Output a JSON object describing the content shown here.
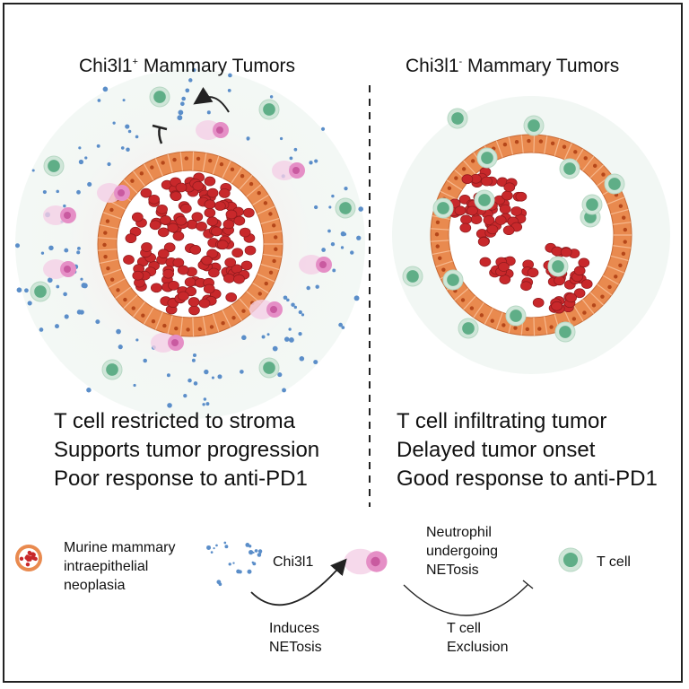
{
  "left_panel": {
    "title_main": "Chi3l1",
    "title_sup": "+",
    "title_rest": " Mammary Tumors",
    "claims": [
      "T cell restricted to stroma",
      "Supports tumor progression",
      "Poor response to anti-PD1"
    ]
  },
  "right_panel": {
    "title_main": "Chi3l1",
    "title_sup": "-",
    "title_rest": " Mammary Tumors",
    "claims": [
      "T cell infiltrating tumor",
      "Delayed tumor onset",
      "Good response to anti-PD1"
    ]
  },
  "legend": {
    "tumor_label": [
      "Murine mammary",
      "intraepithelial",
      "neoplasia"
    ],
    "chi3l1_label": "Chi3l1",
    "induces_label": [
      "Induces",
      "NETosis"
    ],
    "neutrophil_label": [
      "Neutrophil",
      "undergoing",
      "NETosis"
    ],
    "exclusion_label": [
      "T cell",
      "Exclusion"
    ],
    "tcell_label": "T cell"
  },
  "colors": {
    "epithelium": "#e98a4f",
    "tumor_cell": "#c8282b",
    "tcell_outer": "#cfe6d8",
    "tcell_inner": "#5fae87",
    "chi3l1_dot": "#5b8ec9",
    "neutrophil": "#e58fc6"
  }
}
